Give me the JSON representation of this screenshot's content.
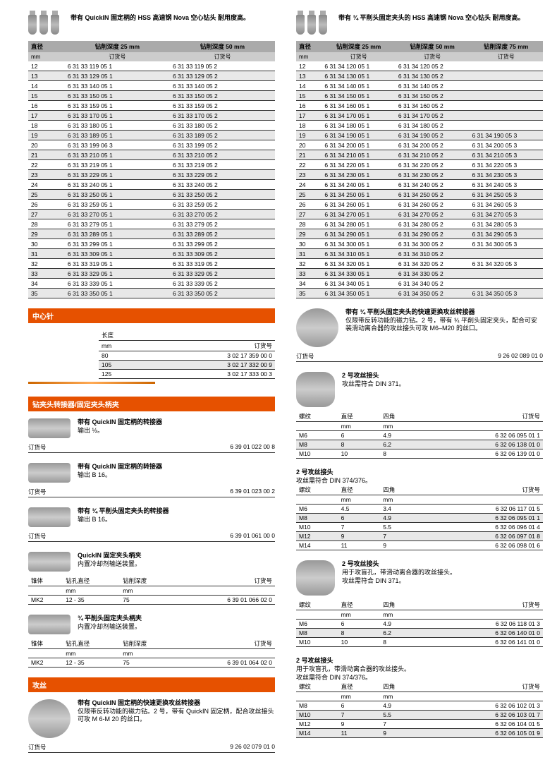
{
  "left": {
    "title": "带有 QuickIN 固定柄的 HSS 高速钢 Nova 空心钻头 耐用度高。",
    "hdr": {
      "c0": "直径",
      "c1": "钻削深度 25 mm",
      "c2": "钻削深度 50 mm"
    },
    "sub": {
      "c0": "mm",
      "c1": "订货号",
      "c2": "订货号"
    },
    "rows": [
      {
        "d": "12",
        "a": "6 31 33 119 05 1",
        "b": "6 31 33 119 05 2"
      },
      {
        "d": "13",
        "a": "6 31 33 129 05 1",
        "b": "6 31 33 129 05 2"
      },
      {
        "d": "14",
        "a": "6 31 33 140 05 1",
        "b": "6 31 33 140 05 2"
      },
      {
        "d": "15",
        "a": "6 31 33 150 05 1",
        "b": "6 31 33 150 05 2"
      },
      {
        "d": "16",
        "a": "6 31 33 159 05 1",
        "b": "6 31 33 159 05 2"
      },
      {
        "d": "17",
        "a": "6 31 33 170 05 1",
        "b": "6 31 33 170 05 2"
      },
      {
        "d": "18",
        "a": "6 31 33 180 05 1",
        "b": "6 31 33 180 05 2"
      },
      {
        "d": "19",
        "a": "6 31 33 189 05 1",
        "b": "6 31 33 189 05 2"
      },
      {
        "d": "20",
        "a": "6 31 33 199 06 3",
        "b": "6 31 33 199 05 2"
      },
      {
        "d": "21",
        "a": "6 31 33 210 05 1",
        "b": "6 31 33 210 05 2"
      },
      {
        "d": "22",
        "a": "6 31 33 219 05 1",
        "b": "6 31 33 219 05 2"
      },
      {
        "d": "23",
        "a": "6 31 33 229 05 1",
        "b": "6 31 33 229 05 2"
      },
      {
        "d": "24",
        "a": "6 31 33 240 05 1",
        "b": "6 31 33 240 05 2"
      },
      {
        "d": "25",
        "a": "6 31 33 250 05 1",
        "b": "6 31 33 250 05 2"
      },
      {
        "d": "26",
        "a": "6 31 33 259 05 1",
        "b": "6 31 33 259 05 2"
      },
      {
        "d": "27",
        "a": "6 31 33 270 05 1",
        "b": "6 31 33 270 05 2"
      },
      {
        "d": "28",
        "a": "6 31 33 279 05 1",
        "b": "6 31 33 279 05 2"
      },
      {
        "d": "29",
        "a": "6 31 33 289 05 1",
        "b": "6 31 33 289 05 2"
      },
      {
        "d": "30",
        "a": "6 31 33 299 05 1",
        "b": "6 31 33 299 05 2"
      },
      {
        "d": "31",
        "a": "6 31 33 309 05 1",
        "b": "6 31 33 309 05 2"
      },
      {
        "d": "32",
        "a": "6 31 33 319 05 1",
        "b": "6 31 33 319 05 2"
      },
      {
        "d": "33",
        "a": "6 31 33 329 05 1",
        "b": "6 31 33 329 05 2"
      },
      {
        "d": "34",
        "a": "6 31 33 339 05 1",
        "b": "6 31 33 339 05 2"
      },
      {
        "d": "35",
        "a": "6 31 33 350 05 1",
        "b": "6 31 33 350 05 2"
      }
    ],
    "center_pin": {
      "title": "中心针",
      "len": "长度",
      "mm": "mm",
      "ord": "订货号",
      "rows": [
        {
          "l": "80",
          "o": "3 02 17 359 00 0"
        },
        {
          "l": "105",
          "o": "3 02 17 332 00 9"
        },
        {
          "l": "125",
          "o": "3 02 17 333 00 3"
        }
      ]
    },
    "adapters_hdr": "钻夹头转接器/固定夹头柄夹",
    "ad1": {
      "t": "带有 QuickIN 固定柄的转接器",
      "s": "输出 ½。",
      "ol": "订货号",
      "on": "6 39 01 022 00 8"
    },
    "ad2": {
      "t": "带有 QuickIN 固定柄的转接器",
      "s": "输出 B 16。",
      "ol": "订货号",
      "on": "6 39 01 023 00 2"
    },
    "ad3": {
      "t": "带有 ¾ 平削头固定夹头的转接器",
      "s": "输出 B 16。",
      "ol": "订货号",
      "on": "6 39 01 061 00 0"
    },
    "hold1": {
      "t": "QuickIN 固定夹头柄夹",
      "s": "内置冷却剂输送装置。",
      "h1": "锥体",
      "h2": "钻孔直径",
      "h3": "钻削深度",
      "ol": "订货号",
      "r": {
        "a": "MK2",
        "b": "12 - 35",
        "c": "75",
        "o": "6 39 01 066 02 0"
      }
    },
    "hold2": {
      "t": "¾ 平削头固定夹头柄夹",
      "s": "内置冷却剂输送装置。",
      "h1": "锥体",
      "h2": "钻孔直径",
      "h3": "钻削深度",
      "ol": "订货号",
      "r": {
        "a": "MK2",
        "b": "12 - 35",
        "c": "75",
        "o": "6 39 01 064 02 0"
      }
    },
    "tap_hdr": "攻丝",
    "tap1": {
      "t": "带有 QuickIN 固定柄的快速更换攻丝转接器",
      "s": "仅限带反转功能的磁力钻。2 号，带有 QuickIN 固定柄，配合攻丝接头可攻 M 6-M 20 的丝口。",
      "ol": "订货号",
      "on": "9 26 02 079 01 0"
    }
  },
  "right": {
    "title": "带有 ¾ 平削头固定夹头的 HSS 高速钢 Nova 空心钻头 耐用度高。",
    "hdr": {
      "c0": "直径",
      "c1": "钻削深度 25 mm",
      "c2": "钻削深度 50 mm",
      "c3": "钻削深度 75 mm"
    },
    "sub": {
      "c0": "mm",
      "c1": "订货号",
      "c2": "订货号",
      "c3": "订货号"
    },
    "rows": [
      {
        "d": "12",
        "a": "6 31 34 120 05 1",
        "b": "6 31 34 120 05 2",
        "c": ""
      },
      {
        "d": "13",
        "a": "6 31 34 130 05 1",
        "b": "6 31 34 130 05 2",
        "c": ""
      },
      {
        "d": "14",
        "a": "6 31 34 140 05 1",
        "b": "6 31 34 140 05 2",
        "c": ""
      },
      {
        "d": "15",
        "a": "6 31 34 150 05 1",
        "b": "6 31 34 150 05 2",
        "c": ""
      },
      {
        "d": "16",
        "a": "6 31 34 160 05 1",
        "b": "6 31 34 160 05 2",
        "c": ""
      },
      {
        "d": "17",
        "a": "6 31 34 170 05 1",
        "b": "6 31 34 170 05 2",
        "c": ""
      },
      {
        "d": "18",
        "a": "6 31 34 180 05 1",
        "b": "6 31 34 180 05 2",
        "c": ""
      },
      {
        "d": "19",
        "a": "6 31 34 190 05 1",
        "b": "6 31 34 190 05 2",
        "c": "6 31 34 190 05 3"
      },
      {
        "d": "20",
        "a": "6 31 34 200 05 1",
        "b": "6 31 34 200 05 2",
        "c": "6 31 34 200 05 3"
      },
      {
        "d": "21",
        "a": "6 31 34 210 05 1",
        "b": "6 31 34 210 05 2",
        "c": "6 31 34 210 05 3"
      },
      {
        "d": "22",
        "a": "6 31 34 220 05 1",
        "b": "6 31 34 220 05 2",
        "c": "6 31 34 220 05 3"
      },
      {
        "d": "23",
        "a": "6 31 34 230 05 1",
        "b": "6 31 34 230 05 2",
        "c": "6 31 34 230 05 3"
      },
      {
        "d": "24",
        "a": "6 31 34 240 05 1",
        "b": "6 31 34 240 05 2",
        "c": "6 31 34 240 05 3"
      },
      {
        "d": "25",
        "a": "6 31 34 250 05 1",
        "b": "6 31 34 250 05 2",
        "c": "6 31 34 250 05 3"
      },
      {
        "d": "26",
        "a": "6 31 34 260 05 1",
        "b": "6 31 34 260 05 2",
        "c": "6 31 34 260 05 3"
      },
      {
        "d": "27",
        "a": "6 31 34 270 05 1",
        "b": "6 31 34 270 05 2",
        "c": "6 31 34 270 05 3"
      },
      {
        "d": "28",
        "a": "6 31 34 280 05 1",
        "b": "6 31 34 280 05 2",
        "c": "6 31 34 280 05 3"
      },
      {
        "d": "29",
        "a": "6 31 34 290 05 1",
        "b": "6 31 34 290 05 2",
        "c": "6 31 34 290 05 3"
      },
      {
        "d": "30",
        "a": "6 31 34 300 05 1",
        "b": "6 31 34 300 05 2",
        "c": "6 31 34 300 05 3"
      },
      {
        "d": "31",
        "a": "6 31 34 310 05 1",
        "b": "6 31 34 310 05 2",
        "c": ""
      },
      {
        "d": "32",
        "a": "6 31 34 320 05 1",
        "b": "6 31 34 320 05 2",
        "c": "6 31 34 320 05 3"
      },
      {
        "d": "33",
        "a": "6 31 34 330 05 1",
        "b": "6 31 34 330 05 2",
        "c": ""
      },
      {
        "d": "34",
        "a": "6 31 34 340 05 1",
        "b": "6 31 34 340 05 2",
        "c": ""
      },
      {
        "d": "35",
        "a": "6 31 34 350 05 1",
        "b": "6 31 34 350 05 2",
        "c": "6 31 34 350 05 3"
      }
    ],
    "tap2": {
      "t": "带有 ¾ 平削头固定夹头的快速更换攻丝转接器",
      "s": "仅限带反转功能的磁力钻。2 号，带有 ¾ 平削头固定夹头，配合可安装滑动离合器的攻丝接头可攻 M6–M20 的丝口。",
      "ol": "订货号",
      "on": "9 26 02 089 01 0"
    },
    "col2": {
      "t": "2 号攻丝接头",
      "s": "攻丝需符合 DIN 371。",
      "h": {
        "a": "螺纹",
        "b": "直径",
        "c": "四角",
        "u": "mm",
        "ol": "订货号"
      },
      "rows": [
        {
          "a": "M6",
          "b": "6",
          "c": "4.9",
          "o": "6 32 06 095 01 1"
        },
        {
          "a": "M8",
          "b": "8",
          "c": "6.2",
          "o": "6 32 06 138 01 0"
        },
        {
          "a": "M10",
          "b": "10",
          "c": "8",
          "o": "6 32 06 139 01 0"
        }
      ]
    },
    "col3": {
      "t": "2 号攻丝接头",
      "s": "攻丝需符合 DIN 374/376。",
      "rows": [
        {
          "a": "M6",
          "b": "4.5",
          "c": "3.4",
          "o": "6 32 06 117 01 5"
        },
        {
          "a": "M8",
          "b": "6",
          "c": "4.9",
          "o": "6 32 06 095 01 1"
        },
        {
          "a": "M10",
          "b": "7",
          "c": "5.5",
          "o": "6 32 06 096 01 4"
        },
        {
          "a": "M12",
          "b": "9",
          "c": "7",
          "o": "6 32 06 097 01 8"
        },
        {
          "a": "M14",
          "b": "11",
          "c": "9",
          "o": "6 32 06 098 01 6"
        }
      ]
    },
    "col4": {
      "t": "2 号攻丝接头",
      "s1": "用于攻盲孔，带滑动离合器的攻丝接头。",
      "s2": "攻丝需符合 DIN 371。",
      "rows": [
        {
          "a": "M6",
          "b": "6",
          "c": "4.9",
          "o": "6 32 06 118 01 3"
        },
        {
          "a": "M8",
          "b": "8",
          "c": "6.2",
          "o": "6 32 06 140 01 0"
        },
        {
          "a": "M10",
          "b": "10",
          "c": "8",
          "o": "6 32 06 141 01 0"
        }
      ]
    },
    "col5": {
      "t": "2 号攻丝接头",
      "s1": "用于攻盲孔，带滑动离合器的攻丝接头。",
      "s2": "攻丝需符合 DIN 374/376。",
      "rows": [
        {
          "a": "M8",
          "b": "6",
          "c": "4.9",
          "o": "6 32 06 102 01 3"
        },
        {
          "a": "M10",
          "b": "7",
          "c": "5.5",
          "o": "6 32 06 103 01 7"
        },
        {
          "a": "M12",
          "b": "9",
          "c": "7",
          "o": "6 32 06 104 01 5"
        },
        {
          "a": "M14",
          "b": "11",
          "c": "9",
          "o": "6 32 06 105 01 9"
        }
      ]
    }
  }
}
